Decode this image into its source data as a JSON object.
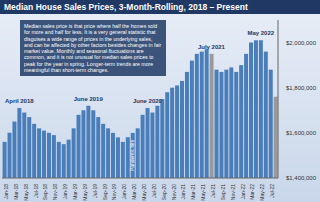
{
  "chart_data": {
    "type": "bar",
    "title": "Median House Sales Prices, 3-Month-Rolling, 2018 – Present",
    "categories": [
      "Jan-18",
      null,
      "Mar-18",
      null,
      "May-18",
      null,
      "Jul-18",
      null,
      "Sep-18",
      null,
      "Nov-18",
      null,
      "Jan-19",
      null,
      "Mar-19",
      null,
      "May-19",
      null,
      "Jul-19",
      null,
      "Sep-19",
      null,
      "Nov-19",
      null,
      "Jan-20",
      null,
      "Mar-20",
      null,
      "May-20",
      null,
      "Jul-20",
      null,
      "Sep-20",
      null,
      "Nov-20",
      null,
      "Jan-21",
      null,
      "Mar-21",
      null,
      "May-21",
      null,
      "Jul-21",
      null,
      "Sep-21",
      null,
      "Nov-21",
      null,
      "Jan-22",
      null,
      "Mar-22",
      null,
      "May-22",
      null,
      "Jul-22",
      null
    ],
    "values": [
      1560000,
      1600000,
      1650000,
      1710000,
      1690000,
      1670000,
      1640000,
      1620000,
      1610000,
      1600000,
      1590000,
      1560000,
      1550000,
      1570000,
      1620000,
      1680000,
      1700000,
      1720000,
      1700000,
      1670000,
      1640000,
      1620000,
      1600000,
      1580000,
      1560000,
      1580000,
      1600000,
      1620000,
      1680000,
      1710000,
      1690000,
      1720000,
      1750000,
      1780000,
      1800000,
      1810000,
      1830000,
      1870000,
      1920000,
      1950000,
      1960000,
      1970000,
      1950000,
      1880000,
      1870000,
      1880000,
      1890000,
      1870000,
      1900000,
      1950000,
      2000000,
      2010000,
      2010000,
      1960000,
      1880000,
      1760000
    ],
    "colors": [
      "#4a7ebb",
      "#4a7ebb",
      "#4a7ebb",
      "#4a7ebb",
      "#4a7ebb",
      "#4a7ebb",
      "#4a7ebb",
      "#4a7ebb",
      "#4a7ebb",
      "#4a7ebb",
      "#4a7ebb",
      "#4a7ebb",
      "#4a7ebb",
      "#4a7ebb",
      "#4a7ebb",
      "#4a7ebb",
      "#4a7ebb",
      "#4a7ebb",
      "#4a7ebb",
      "#4a7ebb",
      "#4a7ebb",
      "#4a7ebb",
      "#4a7ebb",
      "#4a7ebb",
      "#4a7ebb",
      "#4a7ebb",
      "#4a7ebb",
      "#4a7ebb",
      "#4a7ebb",
      "#4a7ebb",
      "#4a7ebb",
      "#4a7ebb",
      "#4a7ebb",
      "#4a7ebb",
      "#4a7ebb",
      "#4a7ebb",
      "#4a7ebb",
      "#4a7ebb",
      "#4a7ebb",
      "#4a7ebb",
      "#4a7ebb",
      "#4a7ebb",
      "#9a9a9a",
      "#4a7ebb",
      "#4a7ebb",
      "#4a7ebb",
      "#4a7ebb",
      "#4a7ebb",
      "#4a7ebb",
      "#4a7ebb",
      "#4a7ebb",
      "#4a7ebb",
      "#4a7ebb",
      "#4a7ebb",
      "#4a7ebb",
      "#9a9a9a"
    ],
    "ylim": [
      1400000,
      2100000
    ],
    "yticks": [
      {
        "value": 1400000,
        "label": "$1,400,000"
      },
      {
        "value": 1600000,
        "label": "$1,600,000"
      },
      {
        "value": 1800000,
        "label": "$1,800,000"
      },
      {
        "value": 2000000,
        "label": "$2,000,000"
      }
    ],
    "grid": false,
    "annotations": [
      "April 2018",
      "June 2019",
      "June 2020",
      "July 2021",
      "May 2022",
      "Pandemic hits"
    ],
    "note": "Median sales price is that price where half the homes sold for more and half for less. It is a very general statistic that disguises a wide range of prices in the underlying sales, and can be affected by other factors besides changes in fair market value. Monthly and seasonal fluctuations are common, and it is not unusual for median sales prices to peak for the year in spring. Longer-term trends are more meaningful than short-term changes."
  }
}
